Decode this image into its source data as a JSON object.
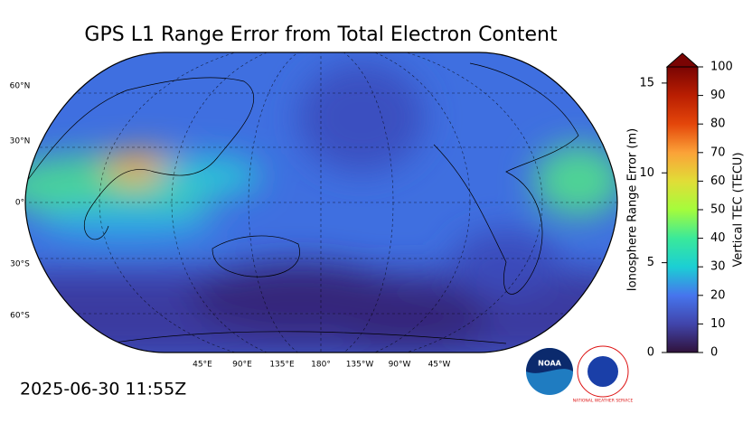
{
  "title": "GPS L1 Range Error from Total Electron Content",
  "map": {
    "lat_labels": [
      "60°N",
      "30°N",
      "0°",
      "30°S",
      "60°S"
    ],
    "lon_labels": [
      "45°E",
      "90°E",
      "135°E",
      "180°",
      "135°W",
      "90°W",
      "45°W"
    ]
  },
  "colorbar": {
    "left_label": "Ionosphere Range Error (m)",
    "left_lim": [
      0,
      15.9
    ],
    "left_ticks": [
      0,
      5,
      10,
      15
    ],
    "right_label": "Vertical TEC (TECU)",
    "right_lim": [
      0,
      100
    ],
    "right_ticks": [
      0,
      10,
      20,
      30,
      40,
      50,
      60,
      70,
      80,
      90,
      100
    ]
  },
  "timestamp": "2025-06-30 11:55Z",
  "logos": {
    "noaa": "NOAA",
    "nws": "NATIONAL WEATHER SERVICE"
  }
}
